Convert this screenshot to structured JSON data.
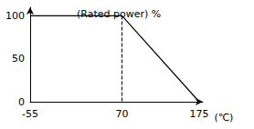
{
  "chart_data": {
    "type": "line",
    "x": [
      -55,
      70,
      175
    ],
    "values": [
      100,
      100,
      0
    ],
    "xlim": [
      -55,
      180
    ],
    "xticks": [
      -55,
      70,
      175
    ],
    "ylim": [
      0,
      110
    ],
    "yticks": [
      0,
      50,
      100
    ],
    "xlabel": "(℃)",
    "annotations": [
      "(Rated power) %"
    ],
    "color": "#000000",
    "grid": false
  }
}
